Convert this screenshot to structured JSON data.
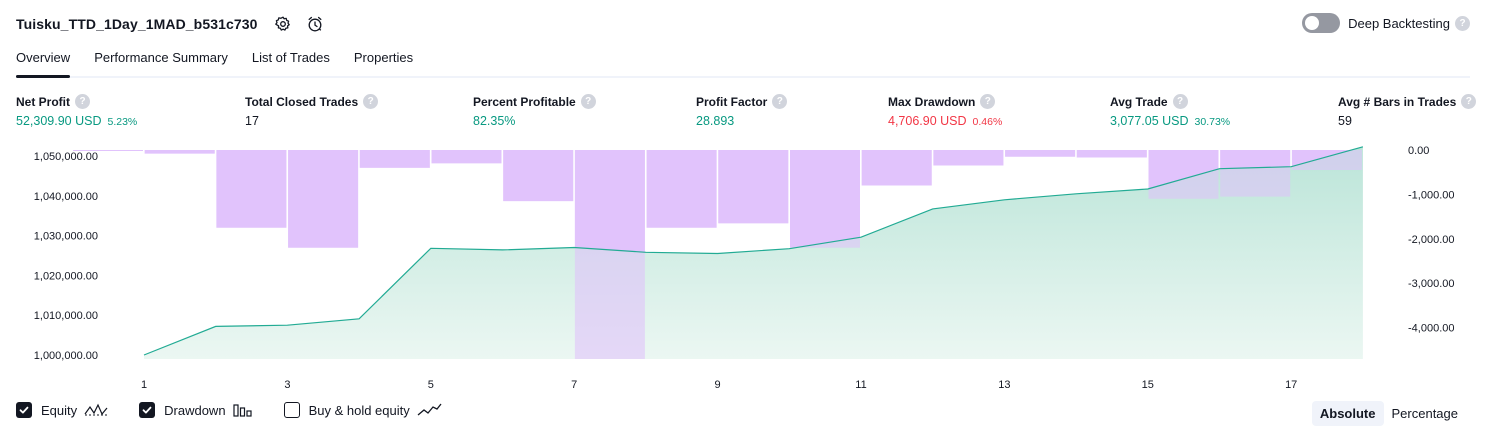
{
  "header": {
    "strategy_name": "Tuisku_TTD_1Day_1MAD_b531c730",
    "deep_backtesting_label": "Deep Backtesting",
    "help_glyph": "?"
  },
  "tabs": [
    {
      "label": "Overview",
      "active": true
    },
    {
      "label": "Performance Summary",
      "active": false
    },
    {
      "label": "List of Trades",
      "active": false
    },
    {
      "label": "Properties",
      "active": false
    }
  ],
  "metrics": {
    "net_profit": {
      "label": "Net Profit",
      "value": "52,309.90 USD",
      "sub": "5.23%"
    },
    "total_closed_trades": {
      "label": "Total Closed Trades",
      "value": "17"
    },
    "percent_profitable": {
      "label": "Percent Profitable",
      "value": "82.35%"
    },
    "profit_factor": {
      "label": "Profit Factor",
      "value": "28.893"
    },
    "max_drawdown": {
      "label": "Max Drawdown",
      "value": "4,706.90 USD",
      "sub": "0.46%"
    },
    "avg_trade": {
      "label": "Avg Trade",
      "value": "3,077.05 USD",
      "sub": "30.73%"
    },
    "avg_bars": {
      "label": "Avg # Bars in Trades",
      "value": "59"
    }
  },
  "colors": {
    "equity_line": "#22ab94",
    "equity_fill": "#c8ebe1",
    "drawdown_fill": "#e1c3fc",
    "drawdown_overlap": "#c5b9f0",
    "positive": "#089981",
    "negative": "#f23645"
  },
  "chart_data": {
    "type": "area",
    "x": [
      1,
      2,
      3,
      4,
      5,
      6,
      7,
      8,
      9,
      10,
      11,
      12,
      13,
      14,
      15,
      16,
      17,
      18
    ],
    "x_ticks": [
      "1",
      "3",
      "5",
      "7",
      "9",
      "11",
      "13",
      "15",
      "17"
    ],
    "grid": false,
    "series": [
      {
        "name": "Equity",
        "kind": "area",
        "axis": "left",
        "values": [
          1000000,
          1007200,
          1007500,
          1009100,
          1026800,
          1026400,
          1027000,
          1025800,
          1025500,
          1026700,
          1029600,
          1036700,
          1039000,
          1040500,
          1041700,
          1046800,
          1047300,
          1052309.9
        ]
      },
      {
        "name": "Drawdown",
        "kind": "bar",
        "axis": "right",
        "values": [
          -20,
          -80,
          -1750,
          -2200,
          -400,
          -300,
          -1150,
          -4706.9,
          -1750,
          -1650,
          -2200,
          -800,
          -350,
          -150,
          -170,
          -1100,
          -1050,
          -450
        ]
      }
    ],
    "left_axis": {
      "ylim": [
        999000,
        1051500
      ],
      "ticks": [
        "1,050,000.00",
        "1,040,000.00",
        "1,030,000.00",
        "1,020,000.00",
        "1,010,000.00",
        "1,000,000.00"
      ],
      "tick_values": [
        1050000,
        1040000,
        1030000,
        1020000,
        1010000,
        1000000
      ]
    },
    "right_axis": {
      "ylim": [
        -4706.9,
        0
      ],
      "ticks": [
        "0.00",
        "-1,000.00",
        "-2,000.00",
        "-3,000.00",
        "-4,000.00"
      ],
      "tick_values": [
        0,
        -1000,
        -2000,
        -3000,
        -4000
      ]
    }
  },
  "legend": {
    "items": [
      {
        "label": "Equity",
        "checked": true,
        "icon": "equity-line-icon"
      },
      {
        "label": "Drawdown",
        "checked": true,
        "icon": "drawdown-bars-icon"
      },
      {
        "label": "Buy & hold equity",
        "checked": false,
        "icon": "buy-hold-line-icon"
      }
    ]
  },
  "modes": [
    {
      "label": "Absolute",
      "active": true
    },
    {
      "label": "Percentage",
      "active": false
    }
  ]
}
